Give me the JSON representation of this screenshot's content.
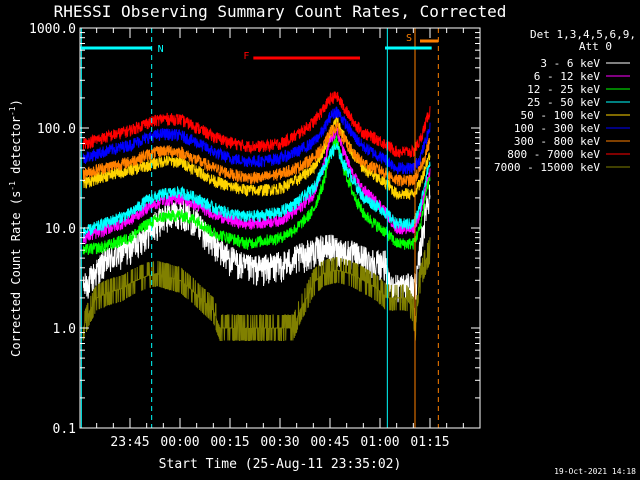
{
  "chart_data": {
    "type": "line",
    "title": "RHESSI Observing Summary Count Rates, Corrected",
    "xlabel": "Start Time (25-Aug-11 23:35:02)",
    "ylabel_main": "Corrected Count Rate (s",
    "ylabel_sup": "-1",
    "ylabel_mid": " detector",
    "ylabel_sup2": "-1",
    "ylabel_end": ")",
    "y_scale": "log",
    "ylim": [
      0.1,
      1000
    ],
    "xlim_minutes": [
      -15,
      105
    ],
    "x_ticks": [
      {
        "t": 0,
        "label": "23:45"
      },
      {
        "t": 15,
        "label": "00:00"
      },
      {
        "t": 30,
        "label": "00:15"
      },
      {
        "t": 45,
        "label": "00:30"
      },
      {
        "t": 60,
        "label": "00:45"
      },
      {
        "t": 75,
        "label": "01:00"
      },
      {
        "t": 90,
        "label": "01:15"
      }
    ],
    "y_ticks": [
      {
        "v": 1000,
        "label": "1000.0"
      },
      {
        "v": 100,
        "label": "100.0"
      },
      {
        "v": 10,
        "label": "10.0"
      },
      {
        "v": 1,
        "label": "1.0"
      },
      {
        "v": 0.1,
        "label": "0.1"
      }
    ],
    "legend_header": [
      "Det 1,3,4,5,6,9,",
      "Att 0"
    ],
    "legend_placement": "right",
    "footer_date": "19-Oct-2021 14:18",
    "flags": [
      {
        "label": "N",
        "color": "#00ffff",
        "start": -15,
        "end": 6.5
      },
      {
        "label": "F",
        "color": "#ff0000",
        "start": 37,
        "end": 69
      },
      {
        "label": "S",
        "color": "#ff8000",
        "start": 87,
        "end": 92.5
      }
    ],
    "flag_cyan_bar": {
      "color": "#00ffff",
      "start": 76.5,
      "end": 90.5
    },
    "vlines": [
      {
        "t": -14.6,
        "color": "#00ffff",
        "style": "solid"
      },
      {
        "t": 6.5,
        "color": "#00ffff",
        "style": "dashed"
      },
      {
        "t": 77.2,
        "color": "#00ffff",
        "style": "solid"
      },
      {
        "t": 85.5,
        "color": "#ff8000",
        "style": "solid"
      },
      {
        "t": 92.5,
        "color": "#ff8000",
        "style": "dashed"
      }
    ],
    "series": [
      {
        "name": "3 - 6 keV",
        "color": "#ffffff",
        "points": [
          [
            -14,
            2.5
          ],
          [
            -8,
            4.5
          ],
          [
            0,
            6.5
          ],
          [
            5,
            9
          ],
          [
            10,
            13
          ],
          [
            15,
            15
          ],
          [
            20,
            12
          ],
          [
            25,
            7
          ],
          [
            30,
            5
          ],
          [
            35,
            4
          ],
          [
            40,
            4
          ],
          [
            45,
            4.3
          ],
          [
            50,
            5
          ],
          [
            55,
            6
          ],
          [
            60,
            6.5
          ],
          [
            63,
            6
          ],
          [
            67,
            5.5
          ],
          [
            70,
            5
          ],
          [
            75,
            4.5
          ],
          [
            76.5,
            4.5
          ],
          [
            77.5,
            2.7
          ],
          [
            80,
            2.6
          ],
          [
            85,
            2.6
          ],
          [
            86,
            3
          ],
          [
            87,
            6
          ],
          [
            88,
            10
          ],
          [
            89,
            18
          ],
          [
            90,
            22
          ]
        ]
      },
      {
        "name": "6 - 12 keV",
        "color": "#ff00ff",
        "points": [
          [
            -14,
            8
          ],
          [
            -8,
            9.5
          ],
          [
            0,
            12
          ],
          [
            5,
            16
          ],
          [
            10,
            19
          ],
          [
            15,
            20
          ],
          [
            20,
            17
          ],
          [
            25,
            14
          ],
          [
            30,
            12
          ],
          [
            35,
            11
          ],
          [
            40,
            11.5
          ],
          [
            45,
            12
          ],
          [
            50,
            15
          ],
          [
            55,
            22
          ],
          [
            58,
            40
          ],
          [
            60,
            75
          ],
          [
            62,
            95
          ],
          [
            64,
            60
          ],
          [
            67,
            33
          ],
          [
            70,
            24
          ],
          [
            75,
            17
          ],
          [
            77,
            14
          ],
          [
            80,
            10
          ],
          [
            85,
            10
          ],
          [
            87,
            14
          ],
          [
            89,
            28
          ],
          [
            90,
            35
          ]
        ]
      },
      {
        "name": "12 - 25 keV",
        "color": "#00ff00",
        "points": [
          [
            -14,
            6
          ],
          [
            -8,
            6.5
          ],
          [
            0,
            8
          ],
          [
            5,
            11
          ],
          [
            10,
            13
          ],
          [
            15,
            13.5
          ],
          [
            20,
            12
          ],
          [
            25,
            9
          ],
          [
            30,
            8
          ],
          [
            35,
            7
          ],
          [
            40,
            7.5
          ],
          [
            45,
            8
          ],
          [
            50,
            10
          ],
          [
            55,
            15
          ],
          [
            58,
            28
          ],
          [
            60,
            55
          ],
          [
            62,
            75
          ],
          [
            64,
            40
          ],
          [
            67,
            22
          ],
          [
            70,
            14
          ],
          [
            75,
            10
          ],
          [
            77,
            9
          ],
          [
            80,
            7
          ],
          [
            85,
            7
          ],
          [
            87,
            10
          ],
          [
            89,
            25
          ],
          [
            90,
            32
          ]
        ]
      },
      {
        "name": "25 - 50 keV",
        "color": "#00ffff",
        "points": [
          [
            -14,
            9
          ],
          [
            -8,
            11
          ],
          [
            0,
            14
          ],
          [
            5,
            19
          ],
          [
            10,
            22
          ],
          [
            15,
            23
          ],
          [
            20,
            20
          ],
          [
            25,
            16
          ],
          [
            30,
            14
          ],
          [
            35,
            13
          ],
          [
            40,
            13.5
          ],
          [
            45,
            14.5
          ],
          [
            50,
            18
          ],
          [
            55,
            25
          ],
          [
            58,
            40
          ],
          [
            60,
            55
          ],
          [
            62,
            65
          ],
          [
            64,
            45
          ],
          [
            67,
            30
          ],
          [
            70,
            20
          ],
          [
            75,
            16
          ],
          [
            77,
            14
          ],
          [
            80,
            11
          ],
          [
            85,
            11
          ],
          [
            87,
            16
          ],
          [
            89,
            35
          ],
          [
            90,
            45
          ]
        ]
      },
      {
        "name": "50 - 100 keV",
        "color": "#ffd400",
        "points": [
          [
            -14,
            28
          ],
          [
            -8,
            33
          ],
          [
            0,
            38
          ],
          [
            5,
            42
          ],
          [
            10,
            47
          ],
          [
            15,
            46
          ],
          [
            20,
            38
          ],
          [
            25,
            30
          ],
          [
            30,
            26
          ],
          [
            35,
            24
          ],
          [
            40,
            24
          ],
          [
            45,
            25
          ],
          [
            50,
            30
          ],
          [
            55,
            40
          ],
          [
            58,
            60
          ],
          [
            60,
            90
          ],
          [
            62,
            120
          ],
          [
            64,
            85
          ],
          [
            67,
            55
          ],
          [
            70,
            40
          ],
          [
            75,
            30
          ],
          [
            77,
            28
          ],
          [
            80,
            22
          ],
          [
            85,
            22
          ],
          [
            87,
            28
          ],
          [
            89,
            45
          ],
          [
            90,
            55
          ]
        ]
      },
      {
        "name": "100 - 300 keV",
        "color": "#0000ff",
        "points": [
          [
            -14,
            50
          ],
          [
            -8,
            58
          ],
          [
            0,
            68
          ],
          [
            5,
            80
          ],
          [
            10,
            88
          ],
          [
            15,
            85
          ],
          [
            20,
            72
          ],
          [
            25,
            58
          ],
          [
            30,
            50
          ],
          [
            35,
            47
          ],
          [
            40,
            47
          ],
          [
            45,
            50
          ],
          [
            50,
            58
          ],
          [
            55,
            72
          ],
          [
            58,
            95
          ],
          [
            60,
            130
          ],
          [
            62,
            150
          ],
          [
            64,
            120
          ],
          [
            67,
            85
          ],
          [
            70,
            65
          ],
          [
            75,
            52
          ],
          [
            77,
            48
          ],
          [
            80,
            40
          ],
          [
            85,
            40
          ],
          [
            87,
            50
          ],
          [
            89,
            80
          ],
          [
            90,
            100
          ]
        ]
      },
      {
        "name": "300 - 800 keV",
        "color": "#ff8000",
        "points": [
          [
            -14,
            35
          ],
          [
            -8,
            40
          ],
          [
            0,
            46
          ],
          [
            5,
            54
          ],
          [
            10,
            60
          ],
          [
            15,
            58
          ],
          [
            20,
            48
          ],
          [
            25,
            40
          ],
          [
            30,
            35
          ],
          [
            35,
            32
          ],
          [
            40,
            32
          ],
          [
            45,
            35
          ],
          [
            50,
            40
          ],
          [
            55,
            50
          ],
          [
            58,
            65
          ],
          [
            60,
            90
          ],
          [
            62,
            105
          ],
          [
            64,
            80
          ],
          [
            67,
            55
          ],
          [
            70,
            45
          ],
          [
            75,
            38
          ],
          [
            77,
            35
          ],
          [
            80,
            30
          ],
          [
            85,
            30
          ],
          [
            87,
            38
          ],
          [
            89,
            60
          ],
          [
            90,
            75
          ]
        ]
      },
      {
        "name": "800 - 7000 keV",
        "color": "#ff0000",
        "points": [
          [
            -14,
            70
          ],
          [
            -8,
            80
          ],
          [
            0,
            95
          ],
          [
            5,
            112
          ],
          [
            10,
            125
          ],
          [
            15,
            122
          ],
          [
            20,
            102
          ],
          [
            25,
            82
          ],
          [
            30,
            72
          ],
          [
            35,
            66
          ],
          [
            40,
            66
          ],
          [
            45,
            70
          ],
          [
            50,
            85
          ],
          [
            55,
            115
          ],
          [
            58,
            155
          ],
          [
            60,
            195
          ],
          [
            62,
            210
          ],
          [
            64,
            165
          ],
          [
            67,
            115
          ],
          [
            70,
            90
          ],
          [
            75,
            75
          ],
          [
            77,
            68
          ],
          [
            80,
            58
          ],
          [
            85,
            58
          ],
          [
            87,
            75
          ],
          [
            89,
            120
          ],
          [
            90,
            150
          ]
        ]
      },
      {
        "name": "7000 - 15000 keV",
        "color": "#808000",
        "points": [
          [
            -14,
            1
          ],
          [
            -12,
            1.5
          ],
          [
            -10,
            2
          ],
          [
            -6,
            2.3
          ],
          [
            -2,
            2.5
          ],
          [
            0,
            2.8
          ],
          [
            2,
            3
          ],
          [
            5,
            3.3
          ],
          [
            8,
            3.5
          ],
          [
            12,
            3.2
          ],
          [
            15,
            3
          ],
          [
            18,
            2.5
          ],
          [
            21,
            2
          ],
          [
            25,
            1.5
          ],
          [
            27,
            1
          ],
          [
            30,
            1
          ],
          [
            35,
            1
          ],
          [
            40,
            1
          ],
          [
            45,
            1
          ],
          [
            49,
            1
          ],
          [
            51,
            1.5
          ],
          [
            53,
            2
          ],
          [
            55,
            2.8
          ],
          [
            58,
            3.5
          ],
          [
            62,
            3.8
          ],
          [
            66,
            3.5
          ],
          [
            70,
            3
          ],
          [
            74,
            2.5
          ],
          [
            77,
            2
          ],
          [
            80,
            2
          ],
          [
            83,
            2
          ],
          [
            85,
            1.5
          ],
          [
            85.6,
            1
          ],
          [
            86,
            2
          ],
          [
            87,
            3
          ],
          [
            88,
            4
          ],
          [
            89,
            5
          ],
          [
            90,
            6
          ]
        ]
      }
    ]
  }
}
